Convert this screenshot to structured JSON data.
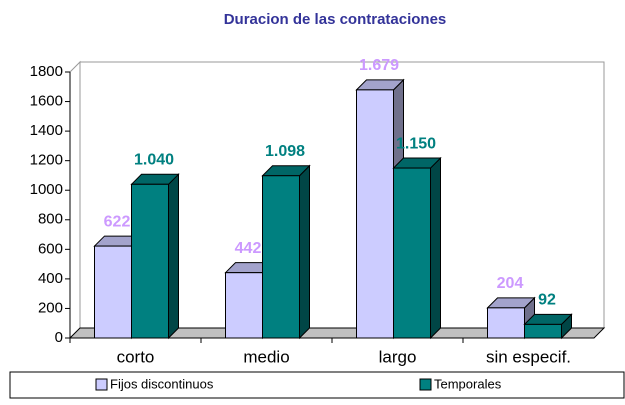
{
  "chart_data": {
    "type": "bar3d",
    "title": "Duracion de las contrataciones",
    "categories": [
      "corto",
      "medio",
      "largo",
      "sin especif."
    ],
    "series": [
      {
        "name": "Fijos discontinuos",
        "color": "#ccccff",
        "label_color": "#cc99ff",
        "values": [
          622,
          442,
          1679,
          204
        ],
        "value_labels": [
          "622",
          "442",
          "1.679",
          "204"
        ]
      },
      {
        "name": "Temporales",
        "color": "#008080",
        "label_color": "#008080",
        "values": [
          1040,
          1098,
          1150,
          92
        ],
        "value_labels": [
          "1.040",
          "1.098",
          "1.150",
          "92"
        ]
      }
    ],
    "ylim": [
      0,
      1800
    ],
    "yticks": [
      0,
      200,
      400,
      600,
      800,
      1000,
      1200,
      1400,
      1600,
      1800
    ],
    "grid": false,
    "legend": "bottom"
  }
}
